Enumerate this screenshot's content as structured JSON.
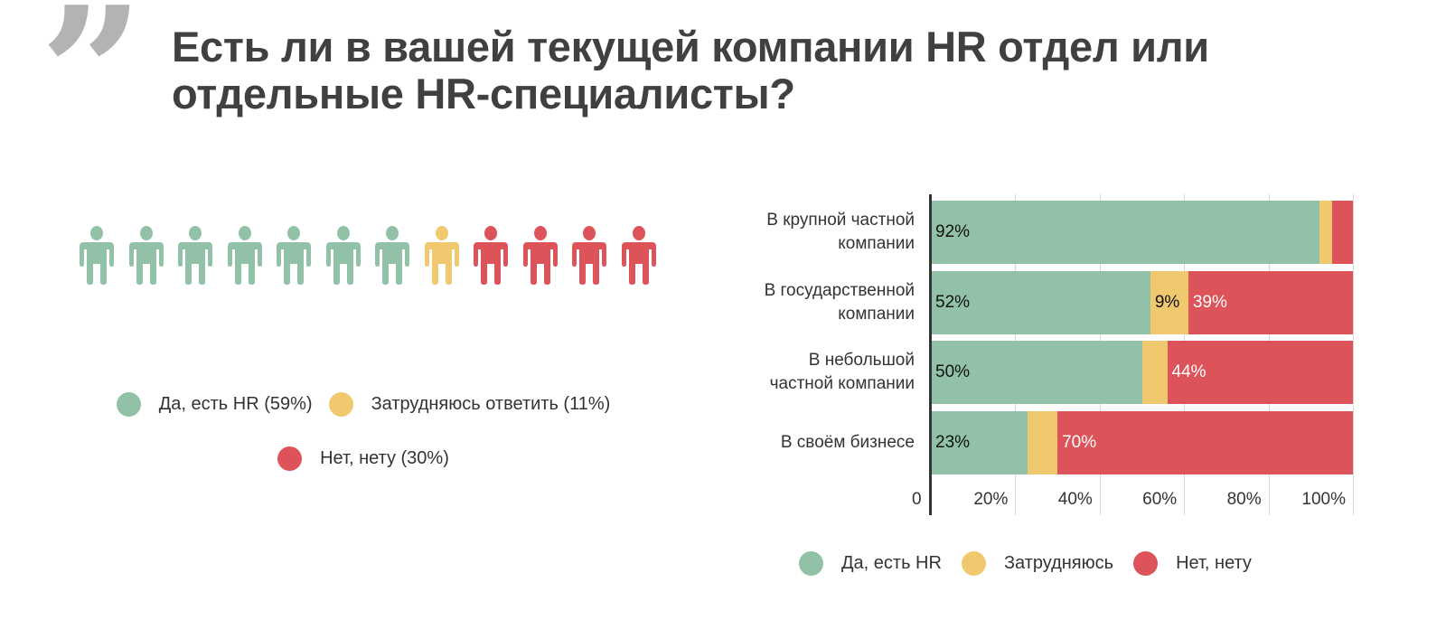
{
  "header": {
    "quote_icon": "quote-mark-icon",
    "quote_glyph": "”",
    "title": "Есть ли в вашей текущей компании HR отдел или отдельные HR-специалисты?"
  },
  "colors": {
    "yes": "#91c2a8",
    "unsure": "#f0c96f",
    "no": "#dc535a",
    "text": "#333333",
    "title": "#404040",
    "quote": "#b3b3b3"
  },
  "pictogram": {
    "icon": "person-icon",
    "people": [
      "yes",
      "yes",
      "yes",
      "yes",
      "yes",
      "yes",
      "yes",
      "unsure",
      "no",
      "no",
      "no",
      "no"
    ]
  },
  "legend_left": {
    "items": [
      {
        "key": "yes",
        "label": "Да, есть HR (59%)"
      },
      {
        "key": "unsure",
        "label": "Затрудняюсь ответить (11%)"
      },
      {
        "key": "no",
        "label": "Нет, нету (30%)"
      }
    ]
  },
  "legend_right": {
    "items": [
      {
        "key": "yes",
        "label": "Да, есть HR"
      },
      {
        "key": "unsure",
        "label": "Затрудняюсь"
      },
      {
        "key": "no",
        "label": "Нет, нету"
      }
    ]
  },
  "chart_data": [
    {
      "type": "pie",
      "title": "Есть ли в вашей текущей компании HR отдел или отдельные HR-специалисты?",
      "display": "pictogram",
      "categories": [
        "Да, есть HR",
        "Затрудняюсь ответить",
        "Нет, нету"
      ],
      "values": [
        59,
        11,
        30
      ],
      "units": "%"
    },
    {
      "type": "bar",
      "orientation": "horizontal",
      "stacked": true,
      "categories": [
        "В крупной частной компании",
        "В государственной компании",
        "В небольшой частной компании",
        "В своём бизнесе"
      ],
      "category_lines": [
        [
          "В крупной частной",
          "компании"
        ],
        [
          "В государственной",
          "компании"
        ],
        [
          "В небольшой",
          "частной компании"
        ],
        [
          "В своём бизнесе"
        ]
      ],
      "series": [
        {
          "name": "Да, есть HR",
          "key": "yes",
          "values": [
            92,
            52,
            50,
            23
          ],
          "labels": [
            "92%",
            "52%",
            "50%",
            "23%"
          ]
        },
        {
          "name": "Затрудняюсь",
          "key": "unsure",
          "values": [
            3,
            9,
            6,
            7
          ],
          "labels": [
            "",
            "9%",
            "",
            ""
          ]
        },
        {
          "name": "Нет, нету",
          "key": "no",
          "values": [
            5,
            39,
            44,
            70
          ],
          "labels": [
            "",
            "39%",
            "44%",
            "70%"
          ]
        }
      ],
      "xlabel": "",
      "ylabel": "",
      "xlim": [
        0,
        100
      ],
      "xticks": [
        "0",
        "20%",
        "40%",
        "60%",
        "80%",
        "100%"
      ],
      "grid": true,
      "legend_position": "bottom"
    }
  ]
}
